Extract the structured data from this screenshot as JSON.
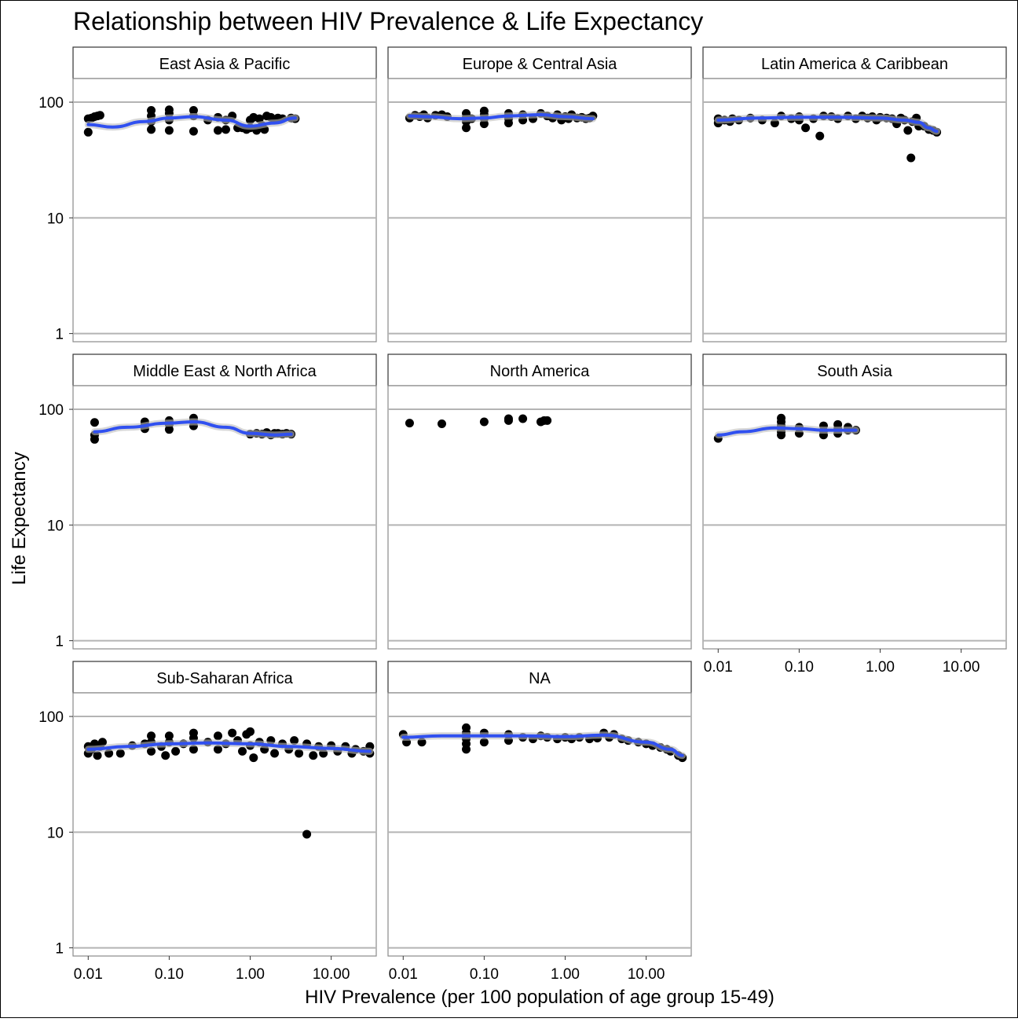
{
  "chart_data": {
    "type": "scatter",
    "title": "Relationship between HIV Prevalence & Life Expectancy",
    "xlabel": "HIV Prevalence (per 100 population of age group 15-49)",
    "ylabel": "Life Expectancy",
    "x_scale": "log10",
    "y_scale": "log10",
    "xlim": [
      0.0065,
      36
    ],
    "ylim": [
      0.85,
      160
    ],
    "x_ticks": [
      0.01,
      0.1,
      1,
      10
    ],
    "x_tick_labels": [
      "0.01",
      "0.10",
      "1.00",
      "10.00"
    ],
    "y_ticks": [
      1,
      10,
      100
    ],
    "y_tick_labels": [
      "1",
      "10",
      "100"
    ],
    "grid": true,
    "colors": {
      "smooth": "#3050F0",
      "points": "#000000",
      "band": "#BDBDBD",
      "grid": "#B4B4B4",
      "frame": "#8A8A8A"
    },
    "facets": [
      {
        "name": "East Asia & Pacific",
        "points": [
          [
            0.01,
            55
          ],
          [
            0.01,
            72
          ],
          [
            0.011,
            73
          ],
          [
            0.012,
            75
          ],
          [
            0.013,
            76
          ],
          [
            0.014,
            77
          ],
          [
            0.06,
            58
          ],
          [
            0.06,
            68
          ],
          [
            0.06,
            76
          ],
          [
            0.06,
            85
          ],
          [
            0.1,
            57
          ],
          [
            0.1,
            70
          ],
          [
            0.1,
            80
          ],
          [
            0.1,
            86
          ],
          [
            0.2,
            56
          ],
          [
            0.2,
            76
          ],
          [
            0.2,
            85
          ],
          [
            0.3,
            70
          ],
          [
            0.4,
            57
          ],
          [
            0.4,
            74
          ],
          [
            0.5,
            58
          ],
          [
            0.5,
            70
          ],
          [
            0.6,
            76
          ],
          [
            0.7,
            60
          ],
          [
            0.8,
            60
          ],
          [
            0.9,
            58
          ],
          [
            1.0,
            60
          ],
          [
            1.0,
            70
          ],
          [
            1.1,
            74
          ],
          [
            1.2,
            57
          ],
          [
            1.3,
            72
          ],
          [
            1.4,
            63
          ],
          [
            1.5,
            58
          ],
          [
            1.6,
            76
          ],
          [
            1.8,
            74
          ],
          [
            2.0,
            70
          ],
          [
            2.2,
            73
          ],
          [
            2.5,
            72
          ],
          [
            3.2,
            73
          ],
          [
            3.6,
            72
          ]
        ],
        "smooth": [
          [
            0.01,
            64
          ],
          [
            0.02,
            61
          ],
          [
            0.05,
            68
          ],
          [
            0.1,
            73
          ],
          [
            0.2,
            75
          ],
          [
            0.5,
            70
          ],
          [
            1.0,
            62
          ],
          [
            2.0,
            66
          ],
          [
            3.6,
            73
          ]
        ]
      },
      {
        "name": "Europe & Central Asia",
        "points": [
          [
            0.012,
            73
          ],
          [
            0.014,
            77
          ],
          [
            0.016,
            75
          ],
          [
            0.018,
            78
          ],
          [
            0.02,
            73
          ],
          [
            0.025,
            77
          ],
          [
            0.03,
            78
          ],
          [
            0.035,
            75
          ],
          [
            0.06,
            60
          ],
          [
            0.06,
            68
          ],
          [
            0.06,
            74
          ],
          [
            0.06,
            80
          ],
          [
            0.07,
            72
          ],
          [
            0.1,
            65
          ],
          [
            0.1,
            72
          ],
          [
            0.1,
            78
          ],
          [
            0.1,
            84
          ],
          [
            0.2,
            66
          ],
          [
            0.2,
            72
          ],
          [
            0.2,
            80
          ],
          [
            0.3,
            70
          ],
          [
            0.3,
            78
          ],
          [
            0.4,
            72
          ],
          [
            0.5,
            80
          ],
          [
            0.6,
            76
          ],
          [
            0.7,
            73
          ],
          [
            0.8,
            78
          ],
          [
            0.9,
            70
          ],
          [
            1.0,
            75
          ],
          [
            1.1,
            72
          ],
          [
            1.2,
            78
          ],
          [
            1.4,
            73
          ],
          [
            1.6,
            74
          ],
          [
            1.8,
            72
          ],
          [
            2.0,
            73
          ],
          [
            2.2,
            76
          ]
        ],
        "smooth": [
          [
            0.012,
            76
          ],
          [
            0.02,
            75
          ],
          [
            0.05,
            72
          ],
          [
            0.1,
            73
          ],
          [
            0.2,
            76
          ],
          [
            0.5,
            78
          ],
          [
            1.0,
            75
          ],
          [
            2.2,
            72
          ]
        ]
      },
      {
        "name": "Latin America & Caribbean",
        "points": [
          [
            0.01,
            66
          ],
          [
            0.01,
            72
          ],
          [
            0.012,
            70
          ],
          [
            0.014,
            68
          ],
          [
            0.015,
            72
          ],
          [
            0.018,
            70
          ],
          [
            0.025,
            73
          ],
          [
            0.035,
            70
          ],
          [
            0.05,
            66
          ],
          [
            0.06,
            76
          ],
          [
            0.08,
            72
          ],
          [
            0.1,
            70
          ],
          [
            0.1,
            75
          ],
          [
            0.12,
            60
          ],
          [
            0.15,
            72
          ],
          [
            0.2,
            76
          ],
          [
            0.25,
            75
          ],
          [
            0.3,
            72
          ],
          [
            0.4,
            76
          ],
          [
            0.5,
            72
          ],
          [
            0.6,
            76
          ],
          [
            0.7,
            73
          ],
          [
            0.8,
            75
          ],
          [
            0.9,
            70
          ],
          [
            1.0,
            74
          ],
          [
            1.2,
            73
          ],
          [
            1.4,
            72
          ],
          [
            1.6,
            65
          ],
          [
            1.8,
            73
          ],
          [
            2.0,
            70
          ],
          [
            2.2,
            57
          ],
          [
            2.5,
            68
          ],
          [
            2.8,
            73
          ],
          [
            3.0,
            62
          ],
          [
            3.5,
            62
          ],
          [
            4.0,
            58
          ],
          [
            4.5,
            57
          ],
          [
            5.0,
            55
          ],
          [
            0.18,
            51
          ],
          [
            2.4,
            33
          ]
        ],
        "smooth": [
          [
            0.01,
            70
          ],
          [
            0.03,
            73
          ],
          [
            0.1,
            74
          ],
          [
            0.3,
            74
          ],
          [
            1.0,
            73
          ],
          [
            2.0,
            70
          ],
          [
            3.0,
            67
          ],
          [
            4.0,
            60
          ],
          [
            5.0,
            56
          ]
        ]
      },
      {
        "name": "Middle East & North Africa",
        "points": [
          [
            0.012,
            55
          ],
          [
            0.012,
            60
          ],
          [
            0.012,
            77
          ],
          [
            0.05,
            68
          ],
          [
            0.05,
            73
          ],
          [
            0.05,
            78
          ],
          [
            0.1,
            67
          ],
          [
            0.1,
            74
          ],
          [
            0.1,
            80
          ],
          [
            0.2,
            72
          ],
          [
            0.2,
            80
          ],
          [
            0.2,
            84
          ],
          [
            1.0,
            61
          ],
          [
            1.2,
            62
          ],
          [
            1.4,
            61
          ],
          [
            1.6,
            63
          ],
          [
            1.8,
            60
          ],
          [
            2.0,
            62
          ],
          [
            2.2,
            62
          ],
          [
            2.5,
            61
          ],
          [
            2.8,
            62
          ],
          [
            3.2,
            61
          ]
        ],
        "smooth": [
          [
            0.012,
            64
          ],
          [
            0.03,
            70
          ],
          [
            0.1,
            76
          ],
          [
            0.2,
            78
          ],
          [
            0.5,
            70
          ],
          [
            1.0,
            62
          ],
          [
            2.0,
            60
          ],
          [
            3.2,
            61
          ]
        ]
      },
      {
        "name": "North America",
        "points": [
          [
            0.012,
            76
          ],
          [
            0.03,
            75
          ],
          [
            0.1,
            78
          ],
          [
            0.2,
            80
          ],
          [
            0.2,
            83
          ],
          [
            0.3,
            83
          ],
          [
            0.5,
            78
          ],
          [
            0.55,
            80
          ],
          [
            0.6,
            80
          ]
        ],
        "smooth": []
      },
      {
        "name": "South Asia",
        "points": [
          [
            0.01,
            56
          ],
          [
            0.06,
            60
          ],
          [
            0.06,
            64
          ],
          [
            0.06,
            68
          ],
          [
            0.06,
            72
          ],
          [
            0.06,
            78
          ],
          [
            0.06,
            84
          ],
          [
            0.1,
            62
          ],
          [
            0.1,
            70
          ],
          [
            0.2,
            60
          ],
          [
            0.2,
            65
          ],
          [
            0.2,
            72
          ],
          [
            0.3,
            62
          ],
          [
            0.3,
            68
          ],
          [
            0.3,
            74
          ],
          [
            0.4,
            66
          ],
          [
            0.4,
            70
          ],
          [
            0.5,
            66
          ]
        ],
        "smooth": [
          [
            0.01,
            60
          ],
          [
            0.02,
            64
          ],
          [
            0.05,
            69
          ],
          [
            0.1,
            68
          ],
          [
            0.2,
            66
          ],
          [
            0.5,
            66
          ]
        ]
      },
      {
        "name": "Sub-Saharan Africa",
        "points": [
          [
            0.01,
            48
          ],
          [
            0.01,
            55
          ],
          [
            0.011,
            52
          ],
          [
            0.012,
            58
          ],
          [
            0.013,
            46
          ],
          [
            0.014,
            55
          ],
          [
            0.015,
            60
          ],
          [
            0.018,
            48
          ],
          [
            0.025,
            48
          ],
          [
            0.035,
            56
          ],
          [
            0.05,
            58
          ],
          [
            0.06,
            50
          ],
          [
            0.06,
            60
          ],
          [
            0.06,
            68
          ],
          [
            0.08,
            55
          ],
          [
            0.09,
            46
          ],
          [
            0.1,
            60
          ],
          [
            0.1,
            68
          ],
          [
            0.12,
            50
          ],
          [
            0.15,
            58
          ],
          [
            0.2,
            52
          ],
          [
            0.2,
            65
          ],
          [
            0.2,
            72
          ],
          [
            0.3,
            60
          ],
          [
            0.4,
            52
          ],
          [
            0.4,
            68
          ],
          [
            0.5,
            58
          ],
          [
            0.6,
            72
          ],
          [
            0.7,
            62
          ],
          [
            0.8,
            50
          ],
          [
            0.9,
            70
          ],
          [
            1.0,
            56
          ],
          [
            1.0,
            74
          ],
          [
            1.1,
            44
          ],
          [
            1.3,
            60
          ],
          [
            1.5,
            52
          ],
          [
            1.8,
            62
          ],
          [
            2.0,
            48
          ],
          [
            2.5,
            58
          ],
          [
            3.0,
            52
          ],
          [
            3.5,
            62
          ],
          [
            4.0,
            48
          ],
          [
            5.0,
            58
          ],
          [
            6.0,
            46
          ],
          [
            7.0,
            55
          ],
          [
            8.0,
            48
          ],
          [
            10,
            56
          ],
          [
            12,
            50
          ],
          [
            15,
            55
          ],
          [
            18,
            48
          ],
          [
            20,
            52
          ],
          [
            25,
            50
          ],
          [
            30,
            55
          ],
          [
            30,
            48
          ],
          [
            5.0,
            9.6
          ]
        ],
        "smooth": [
          [
            0.01,
            52
          ],
          [
            0.03,
            55
          ],
          [
            0.1,
            58
          ],
          [
            0.3,
            59
          ],
          [
            1.0,
            58
          ],
          [
            3.0,
            55
          ],
          [
            10,
            53
          ],
          [
            30,
            50
          ]
        ]
      },
      {
        "name": "NA",
        "points": [
          [
            0.01,
            70
          ],
          [
            0.011,
            60
          ],
          [
            0.017,
            60
          ],
          [
            0.06,
            52
          ],
          [
            0.06,
            58
          ],
          [
            0.06,
            64
          ],
          [
            0.06,
            72
          ],
          [
            0.06,
            80
          ],
          [
            0.1,
            60
          ],
          [
            0.1,
            72
          ],
          [
            0.2,
            62
          ],
          [
            0.2,
            70
          ],
          [
            0.3,
            66
          ],
          [
            0.4,
            64
          ],
          [
            0.5,
            68
          ],
          [
            0.6,
            66
          ],
          [
            0.8,
            64
          ],
          [
            1.0,
            66
          ],
          [
            1.2,
            64
          ],
          [
            1.5,
            66
          ],
          [
            2.0,
            64
          ],
          [
            2.5,
            65
          ],
          [
            3.0,
            72
          ],
          [
            3.5,
            66
          ],
          [
            4.0,
            70
          ],
          [
            5.0,
            64
          ],
          [
            6.0,
            62
          ],
          [
            8.0,
            60
          ],
          [
            10,
            58
          ],
          [
            12,
            56
          ],
          [
            15,
            54
          ],
          [
            18,
            52
          ],
          [
            20,
            50
          ],
          [
            25,
            46
          ],
          [
            28,
            44
          ]
        ],
        "smooth": [
          [
            0.01,
            66
          ],
          [
            0.03,
            68
          ],
          [
            0.1,
            68
          ],
          [
            0.3,
            68
          ],
          [
            1.0,
            67
          ],
          [
            3.0,
            69
          ],
          [
            10,
            60
          ],
          [
            20,
            52
          ],
          [
            28,
            46
          ]
        ]
      }
    ]
  }
}
